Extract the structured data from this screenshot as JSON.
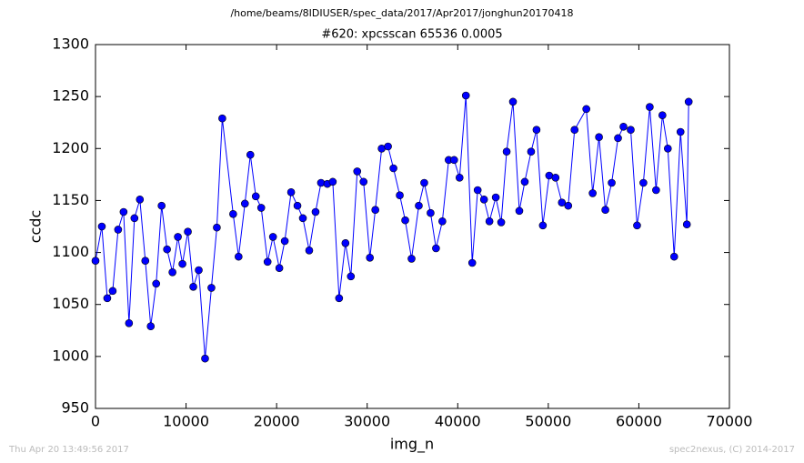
{
  "chart_data": {
    "type": "line",
    "suptitle": "/home/beams/8IDIUSER/spec_data/2017/Apr2017/jonghun20170418",
    "title": "#620: xpcsscan 65536 0.0005",
    "x_label": "img_n",
    "y_label": "ccdc",
    "footer_left": "Thu Apr 20 13:49:56 2017",
    "footer_right": "spec2nexus, (C) 2014-2017",
    "x": [
      0,
      700,
      1300,
      1900,
      2500,
      3100,
      3700,
      4300,
      4900,
      5500,
      6100,
      6700,
      7300,
      7900,
      8500,
      9100,
      9600,
      10200,
      10800,
      11400,
      12100,
      12800,
      13400,
      14000,
      15200,
      15800,
      16500,
      17100,
      17700,
      18300,
      19000,
      19600,
      20300,
      20900,
      21600,
      22300,
      22900,
      23600,
      24300,
      24900,
      25600,
      26200,
      26900,
      27600,
      28200,
      28900,
      29600,
      30300,
      30900,
      31600,
      32300,
      32900,
      33600,
      34200,
      34900,
      35700,
      36300,
      37000,
      37600,
      38300,
      39000,
      39600,
      40200,
      40900,
      41600,
      42200,
      42900,
      43500,
      44200,
      44800,
      45400,
      46100,
      46800,
      47400,
      48100,
      48700,
      49400,
      50100,
      50800,
      51500,
      52200,
      52900,
      54200,
      54900,
      55600,
      56300,
      57000,
      57700,
      58300,
      59100,
      59800,
      60500,
      61200,
      61900,
      62600,
      63200,
      63900,
      64600,
      65300,
      65500
    ],
    "series": [
      {
        "name": "ccdc",
        "color": "#0000ff",
        "values": [
          1092,
          1125,
          1056,
          1063,
          1122,
          1139,
          1032,
          1133,
          1151,
          1092,
          1029,
          1070,
          1145,
          1103,
          1081,
          1115,
          1089,
          1120,
          1067,
          1083,
          998,
          1066,
          1124,
          1229,
          1137,
          1096,
          1147,
          1194,
          1154,
          1143,
          1091,
          1115,
          1085,
          1111,
          1158,
          1145,
          1133,
          1102,
          1139,
          1167,
          1166,
          1168,
          1056,
          1109,
          1077,
          1178,
          1168,
          1095,
          1141,
          1200,
          1202,
          1181,
          1155,
          1131,
          1094,
          1145,
          1167,
          1138,
          1104,
          1130,
          1189,
          1189,
          1172,
          1251,
          1090,
          1160,
          1151,
          1130,
          1153,
          1129,
          1197,
          1245,
          1140,
          1168,
          1197,
          1218,
          1126,
          1174,
          1172,
          1148,
          1145,
          1218,
          1238,
          1157,
          1211,
          1141,
          1167,
          1210,
          1221,
          1218,
          1126,
          1167,
          1240,
          1160,
          1232,
          1200,
          1096,
          1216,
          1127,
          1245
        ]
      }
    ],
    "xlim": [
      0,
      70000
    ],
    "xticks": [
      0,
      10000,
      20000,
      30000,
      40000,
      50000,
      60000,
      70000
    ],
    "ylim": [
      950,
      1300
    ],
    "yticks": [
      950,
      1000,
      1050,
      1100,
      1150,
      1200,
      1250,
      1300
    ],
    "grid": false
  }
}
